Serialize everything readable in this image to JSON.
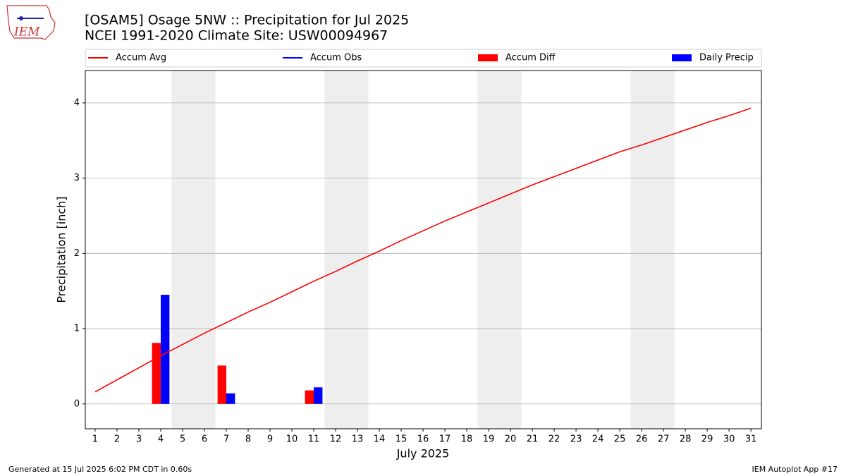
{
  "chart_data": {
    "type": "bar",
    "title": "[OSAM5] Osage 5NW :: Precipitation for Jul 2025",
    "subtitle": "NCEI 1991-2020 Climate Site: USW00094967",
    "logo_text": "IEM",
    "xlabel": "July 2025",
    "ylabel": "Precipitation [inch]",
    "footer_left": "Generated at 15 Jul 2025 6:02 PM CDT in 0.60s",
    "footer_right": "IEM Autoplot App #17",
    "x": [
      1,
      2,
      3,
      4,
      5,
      6,
      7,
      8,
      9,
      10,
      11,
      12,
      13,
      14,
      15,
      16,
      17,
      18,
      19,
      20,
      21,
      22,
      23,
      24,
      25,
      26,
      27,
      28,
      29,
      30,
      31
    ],
    "xlim": [
      0.55,
      31.48
    ],
    "xticks": [
      1,
      2,
      3,
      4,
      5,
      6,
      7,
      8,
      9,
      10,
      11,
      12,
      13,
      14,
      15,
      16,
      17,
      18,
      19,
      20,
      21,
      22,
      23,
      24,
      25,
      26,
      27,
      28,
      29,
      30,
      31
    ],
    "ylim": [
      -0.33,
      4.43
    ],
    "yticks": [
      0,
      1,
      2,
      3,
      4
    ],
    "grid": true,
    "weekend_shading": [
      [
        4.5,
        6.5
      ],
      [
        11.5,
        13.5
      ],
      [
        18.5,
        20.5
      ],
      [
        25.5,
        27.5
      ]
    ],
    "series": [
      {
        "name": "Accum Avg",
        "type": "line",
        "color": "#ff0000",
        "values": [
          0.16,
          0.32,
          0.48,
          0.64,
          0.79,
          0.94,
          1.08,
          1.22,
          1.35,
          1.49,
          1.63,
          1.76,
          1.9,
          2.03,
          2.17,
          2.3,
          2.43,
          2.55,
          2.67,
          2.79,
          2.91,
          3.02,
          3.13,
          3.24,
          3.35,
          3.44,
          3.54,
          3.64,
          3.74,
          3.83,
          3.93
        ]
      },
      {
        "name": "Accum Obs",
        "type": "line",
        "color": "#0000ff",
        "values": [
          null,
          null,
          null,
          null,
          null,
          null,
          null,
          null,
          null,
          null,
          null,
          null,
          null,
          null,
          null,
          null,
          null,
          null,
          null,
          null,
          null,
          null,
          null,
          null,
          null,
          null,
          null,
          null,
          null,
          null,
          null
        ]
      },
      {
        "name": "Accum Diff",
        "type": "bar",
        "color": "#ff0000",
        "values": [
          null,
          null,
          null,
          0.81,
          null,
          null,
          0.51,
          null,
          null,
          null,
          0.18,
          null,
          null,
          null,
          null,
          null,
          null,
          null,
          null,
          null,
          null,
          null,
          null,
          null,
          null,
          null,
          null,
          null,
          null,
          null,
          null
        ]
      },
      {
        "name": "Daily Precip",
        "type": "bar",
        "color": "#0000ff",
        "values": [
          null,
          null,
          null,
          1.45,
          null,
          null,
          0.14,
          null,
          null,
          null,
          0.22,
          null,
          null,
          null,
          null,
          null,
          null,
          null,
          null,
          null,
          null,
          null,
          null,
          null,
          null,
          null,
          null,
          null,
          null,
          null,
          null
        ]
      }
    ]
  }
}
